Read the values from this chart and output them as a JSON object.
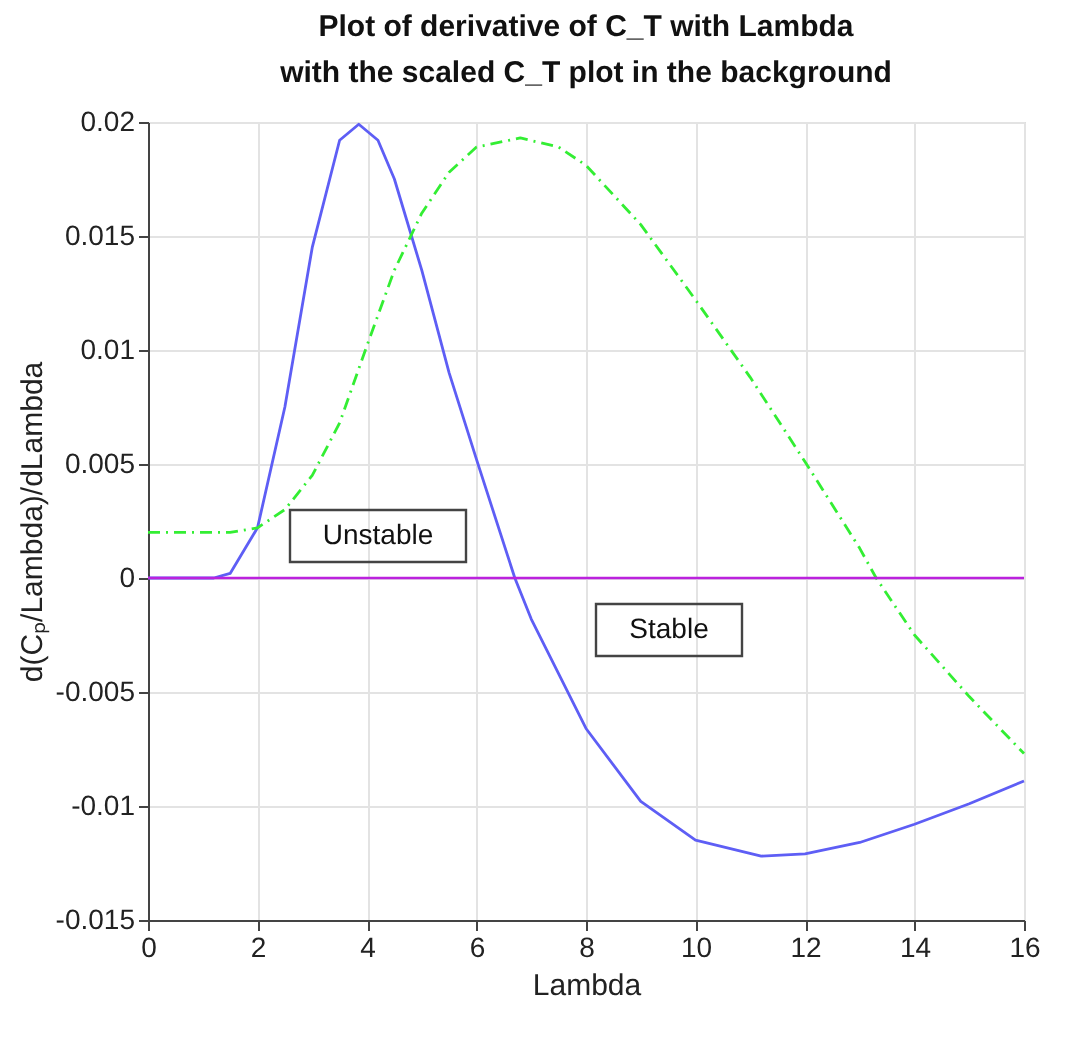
{
  "chart_data": {
    "type": "line",
    "title": "Plot of derivative of C_T with Lambda",
    "subtitle": "with the scaled C_T plot in the background",
    "xlabel": "Lambda",
    "ylabel": "d(Cₚ/Lambda)/dLambda",
    "xlim": [
      0,
      16
    ],
    "xticks": [
      0,
      2,
      4,
      6,
      8,
      10,
      12,
      14,
      16
    ],
    "ylim": [
      -0.015,
      0.02
    ],
    "yticks": [
      -0.015,
      -0.01,
      -0.005,
      0,
      0.005,
      0.01,
      0.015,
      0.02
    ],
    "grid": true,
    "legend": false,
    "marker": "none",
    "series": [
      {
        "color": "#5e5ef5",
        "line_style": "solid",
        "x": [
          0,
          1.2,
          1.5,
          2,
          2.5,
          3,
          3.5,
          3.85,
          4.2,
          4.5,
          5,
          5.5,
          6,
          6.7,
          7,
          8,
          9,
          10,
          11.2,
          12,
          13,
          14,
          15,
          16
        ],
        "values": [
          0,
          0,
          0.0002,
          0.0022,
          0.0075,
          0.0145,
          0.0192,
          0.0199,
          0.0192,
          0.0175,
          0.0135,
          0.009,
          0.0052,
          0,
          -0.0018,
          -0.0066,
          -0.0098,
          -0.0115,
          -0.0122,
          -0.0121,
          -0.0116,
          -0.0108,
          -0.0099,
          -0.0089
        ]
      },
      {
        "color": "#33ee33",
        "line_style": "dashdot",
        "x": [
          0,
          1.5,
          2,
          2.5,
          3,
          3.5,
          4,
          4.5,
          5,
          5.5,
          6,
          6.8,
          7.5,
          8,
          9,
          10,
          11,
          12,
          13,
          13.3,
          14,
          15,
          16
        ],
        "values": [
          0.002,
          0.002,
          0.0022,
          0.003,
          0.0045,
          0.0068,
          0.0102,
          0.0135,
          0.016,
          0.0178,
          0.0189,
          0.0193,
          0.0189,
          0.0181,
          0.0155,
          0.0122,
          0.0088,
          0.0051,
          0.0013,
          0,
          -0.0025,
          -0.0052,
          -0.0077
        ]
      }
    ],
    "ref_lines": [
      {
        "axis": "y",
        "value": 0,
        "color": "#bb22dd"
      }
    ],
    "annotations": [
      "Unstable",
      "Stable"
    ]
  }
}
